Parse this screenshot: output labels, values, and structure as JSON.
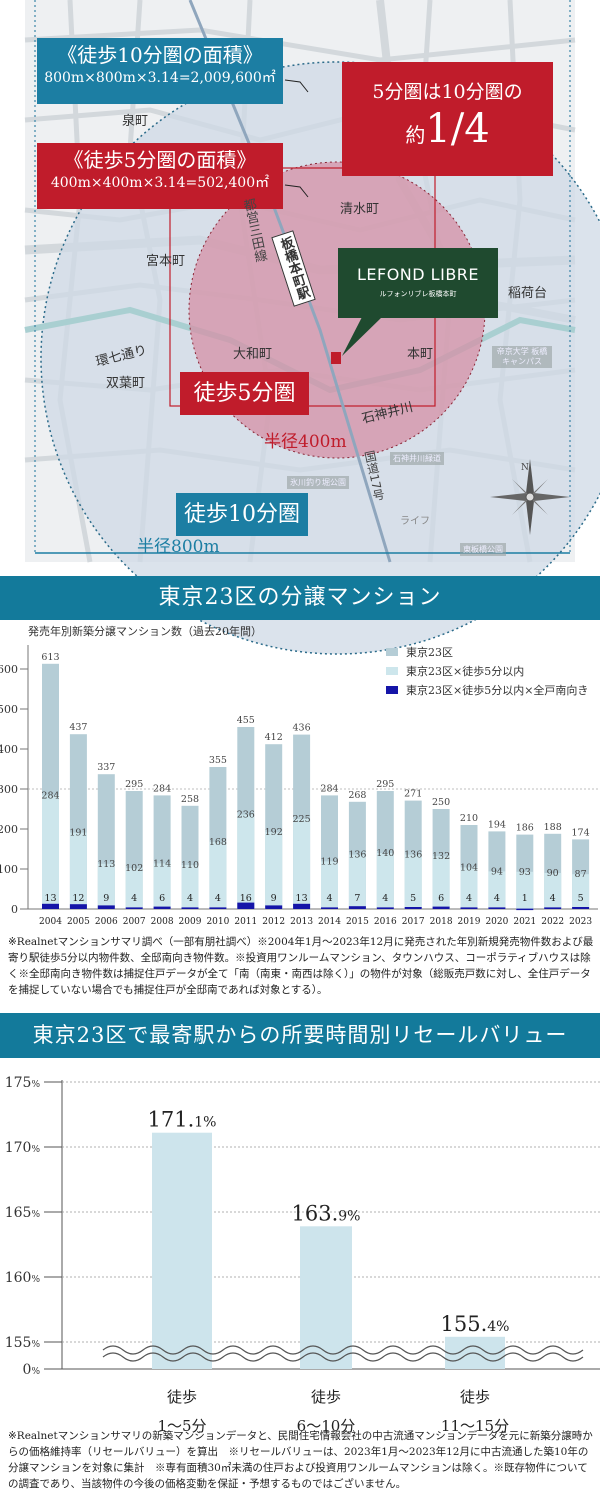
{
  "map": {
    "area10_box": {
      "title": "《徒歩10分圏の面積》",
      "formula": "800m×800m×3.14=2,009,600㎡"
    },
    "area5_box": {
      "title": "《徒歩5分圏の面積》",
      "formula": "400m×400m×3.14=502,400㎡"
    },
    "ratio_box": {
      "line1": "5分圏は10分圏の",
      "prefix": "約",
      "value": "1/4"
    },
    "towns": [
      "泉町",
      "清水町",
      "宮本町",
      "稲荷台",
      "環七通り",
      "大和町",
      "本町",
      "双葉町",
      "石神井川"
    ],
    "railway_line": "都営三田線",
    "station": "板橋本町駅",
    "route": "国道17号",
    "property": {
      "name": "LEFOND LIBRE",
      "kana": "ルフォンリブレ板橋本町"
    },
    "walk5_label": "徒歩5分圏",
    "walk10_label": "徒歩10分圏",
    "radius400_label": "半径400m",
    "radius800_label": "半径800m",
    "landmarks": [
      "帝京大学 板橋キャンパス",
      "石神井川緑道",
      "氷川釣り堀公園",
      "ライフ",
      "東板橋公園"
    ],
    "compass_label": "N",
    "colors": {
      "blue": "#1c7ea3",
      "red": "#c01c2b",
      "green": "#1f4a2f",
      "circle10": "#d6e0ea",
      "circle5": "#d59bab"
    }
  },
  "section1": {
    "header": "東京23区の分譲マンション",
    "note": "※Realnetマンションサマリ調べ（一部有朋社調べ）※2004年1月〜2023年12月に発売された年別新規発売物件数および最寄り駅徒歩5分以内物件数、全邸南向き物件数。※投資用ワンルームマンション、タウンハウス、コーポラティブハウスは除く※全邸南向き物件数は捕捉住戸データが全て「南（南東・南西は除く）」の物件が対象（総販売戸数に対し、全住戸データを捕捉していない場合でも捕捉住戸が全邸南であれば対象とする）。"
  },
  "section2": {
    "header": "東京23区で最寄駅からの所要時間別リセールバリュー",
    "note": "※Realnetマンションサマリの新築マンションデータと、民間住宅情報会社の中古流通マンションデータを元に新築分譲時からの価格維持率（リセールバリュー）を算出　※リセールバリューは、2023年1月〜2023年12月に中古流通した築10年の分譲マンションを対象に集計　※専有面積30㎡未満の住戸および投資用ワンルームマンションは除く。※既存物件についての調査であり、当該物件の今後の価格変動を保証・予想するものではございません。"
  },
  "chart_data": [
    {
      "type": "bar",
      "title": "発売年別新築分譲マンション数（過去20年間）",
      "xlabel": "",
      "ylabel": "",
      "ylim": [
        0,
        650
      ],
      "yticks": [
        0,
        100,
        200,
        300,
        400,
        500,
        600
      ],
      "grid": "dotted line at 300",
      "legend_position": "top-right",
      "categories": [
        "2004",
        "2005",
        "2006",
        "2007",
        "2008",
        "2009",
        "2010",
        "2011",
        "2012",
        "2013",
        "2014",
        "2015",
        "2016",
        "2017",
        "2018",
        "2019",
        "2020",
        "2021",
        "2022",
        "2023"
      ],
      "series": [
        {
          "name": "東京23区",
          "color": "#b5cdd6",
          "values": [
            613,
            437,
            337,
            295,
            284,
            258,
            355,
            455,
            412,
            436,
            284,
            268,
            295,
            271,
            250,
            210,
            194,
            186,
            188,
            174
          ]
        },
        {
          "name": "東京23区×徒歩5分以内",
          "color": "#cde6ec",
          "values": [
            284,
            191,
            113,
            102,
            114,
            110,
            168,
            236,
            192,
            225,
            119,
            136,
            140,
            136,
            132,
            104,
            94,
            93,
            90,
            87
          ]
        },
        {
          "name": "東京23区×徒歩5分以内×全戸南向き",
          "color": "#1515a8",
          "values": [
            13,
            12,
            9,
            4,
            6,
            4,
            4,
            16,
            9,
            13,
            4,
            7,
            4,
            5,
            6,
            4,
            4,
            1,
            4,
            5
          ]
        }
      ]
    },
    {
      "type": "bar",
      "title": "",
      "xlabel": "",
      "ylabel": "",
      "axis_break": true,
      "ylim": [
        155,
        175
      ],
      "yticks": [
        "0%",
        "155%",
        "160%",
        "165%",
        "170%",
        "175%"
      ],
      "grid": "dotted horizontal",
      "categories": [
        {
          "line1": "徒歩",
          "line2": "1〜5分"
        },
        {
          "line1": "徒歩",
          "line2": "6〜10分"
        },
        {
          "line1": "徒歩",
          "line2": "11〜15分"
        }
      ],
      "values": [
        171.1,
        163.9,
        155.4
      ],
      "value_labels": [
        {
          "num": "171.",
          "dec": "1%"
        },
        {
          "num": "163.",
          "dec": "9%"
        },
        {
          "num": "155.",
          "dec": "4%"
        }
      ],
      "color": "#cde4ec"
    }
  ]
}
